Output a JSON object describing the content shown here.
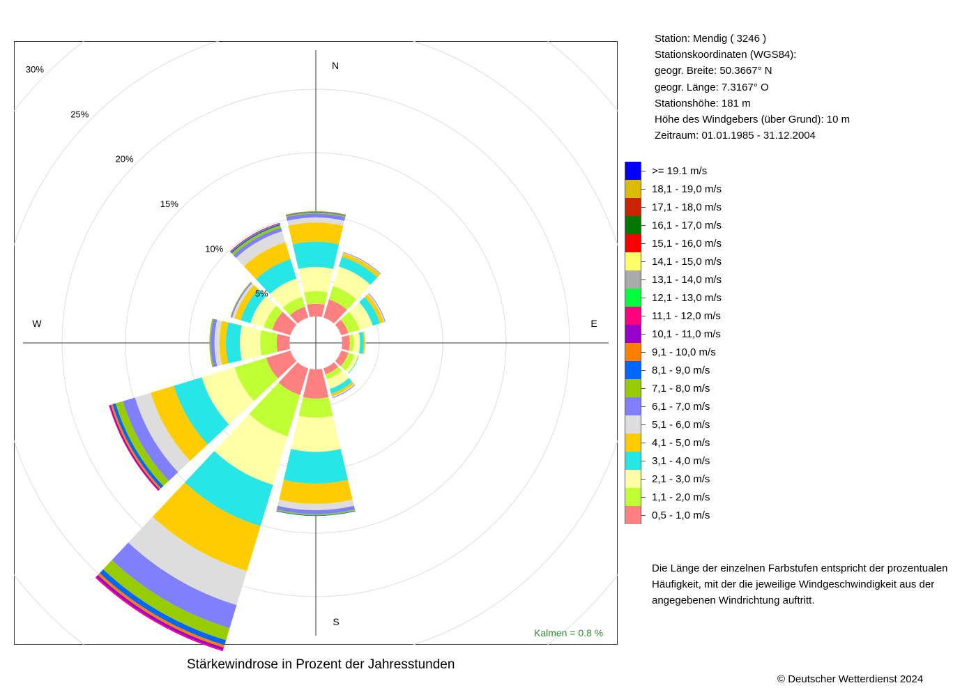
{
  "station": {
    "line1": "Station:  Mendig  ( 3246 )",
    "line2": "Stationskoordinaten (WGS84):",
    "line3": "geogr. Breite: 50.3667° N",
    "line4": "geogr. Länge:   7.3167° O",
    "line5": "Stationshöhe: 181 m",
    "line6": "Höhe des Windgebers (über Grund): 10 m",
    "line7": "Zeitraum: 01.01.1985 - 31.12.2004"
  },
  "note": "Die Länge der einzelnen Farbstufen entspricht der prozentualen Häufigkeit, mit der die jeweilige Windgeschwindigkeit aus der angegebenen Windrichtung auftritt.",
  "caption": "Stärkewindrose in Prozent der Jahresstunden",
  "copyright": "© Deutscher Wetterdienst  2024",
  "calm_label": "Kalmen  =  0.8 %",
  "colors": {
    "calm_text": "#2e8b2e",
    "grid": "#dddddd",
    "axis": "#333333"
  },
  "chart_data": {
    "type": "polar-stacked-bar",
    "directions": [
      "N",
      "NNE",
      "ENE",
      "E",
      "ESE",
      "SSE",
      "S",
      "SSW",
      "WSW",
      "W",
      "WNW",
      "NNW"
    ],
    "direction_degrees": [
      0,
      30,
      60,
      90,
      120,
      150,
      180,
      210,
      240,
      270,
      300,
      330
    ],
    "compass_labels": [
      "N",
      "E",
      "S",
      "W"
    ],
    "radial_ticks": [
      5,
      10,
      15,
      20,
      25,
      30
    ],
    "radial_tick_labels": [
      "5%",
      "10%",
      "15%",
      "20%",
      "25%",
      "30%"
    ],
    "rmax": 30,
    "calm_percent": 0.8,
    "classes": [
      {
        "label": "0,5 - 1,0 m/s",
        "color": "#ff8080"
      },
      {
        "label": "1,1 - 2,0 m/s",
        "color": "#bfff33"
      },
      {
        "label": "2,1 - 3,0 m/s",
        "color": "#ffffa6"
      },
      {
        "label": "3,1 - 4,0 m/s",
        "color": "#26e6e6"
      },
      {
        "label": "4,1 - 5,0 m/s",
        "color": "#ffcc00"
      },
      {
        "label": "5,1 - 6,0 m/s",
        "color": "#dddddd"
      },
      {
        "label": "6,1 - 7,0 m/s",
        "color": "#8080ff"
      },
      {
        "label": "7,1 - 8,0 m/s",
        "color": "#99cc00"
      },
      {
        "label": "8,1 - 9,0 m/s",
        "color": "#0066ff"
      },
      {
        "label": "9,1 - 10,0 m/s",
        "color": "#ff8000"
      },
      {
        "label": "10,1 - 11,0 m/s",
        "color": "#9900cc"
      },
      {
        "label": "11,1 - 12,0 m/s",
        "color": "#ff0080"
      },
      {
        "label": "12,1 - 13,0 m/s",
        "color": "#00ff40"
      },
      {
        "label": "13,1 - 14,0 m/s",
        "color": "#aaaaaa"
      },
      {
        "label": "14,1 - 15,0 m/s",
        "color": "#ffff66"
      },
      {
        "label": "15,1 - 16,0 m/s",
        "color": "#ff0000"
      },
      {
        "label": "16,1 - 17,0 m/s",
        "color": "#007700"
      },
      {
        "label": "17,1 - 18,0 m/s",
        "color": "#cc2200"
      },
      {
        "label": "18,1 - 19,0 m/s",
        "color": "#ddbb00"
      },
      {
        "label": ">= 19.1 m/s",
        "color": "#0000ff"
      }
    ],
    "values": [
      [
        1.0,
        1.0,
        1.9,
        2.0,
        1.5,
        0.4,
        0.3,
        0.1,
        0.05,
        0.05,
        0,
        0,
        0,
        0,
        0,
        0,
        0,
        0,
        0,
        0
      ],
      [
        1.5,
        1.1,
        1.6,
        0.8,
        0.3,
        0.05,
        0.05,
        0,
        0,
        0,
        0,
        0,
        0,
        0,
        0,
        0,
        0,
        0,
        0,
        0
      ],
      [
        0.6,
        0.9,
        1.1,
        0.6,
        0.3,
        0.1,
        0.05,
        0,
        0,
        0,
        0,
        0,
        0,
        0,
        0,
        0,
        0,
        0,
        0,
        0
      ],
      [
        0.6,
        0.3,
        0.5,
        0.3,
        0.1,
        0.05,
        0,
        0,
        0,
        0,
        0,
        0,
        0,
        0,
        0,
        0,
        0,
        0,
        0,
        0
      ],
      [
        0.6,
        0.5,
        0.3,
        0.05,
        0,
        0,
        0,
        0,
        0,
        0,
        0,
        0,
        0,
        0,
        0,
        0,
        0,
        0,
        0,
        0
      ],
      [
        0.5,
        0.4,
        0.8,
        0.4,
        0.2,
        0.1,
        0.05,
        0,
        0,
        0,
        0,
        0,
        0,
        0,
        0,
        0,
        0,
        0,
        0,
        0
      ],
      [
        2.3,
        1.5,
        2.7,
        2.5,
        1.6,
        0.5,
        0.3,
        0.1,
        0.05,
        0,
        0,
        0,
        0,
        0,
        0,
        0,
        0,
        0,
        0,
        0
      ],
      [
        2.2,
        3.4,
        4.0,
        3.4,
        3.7,
        2.8,
        1.9,
        1.0,
        0.4,
        0.2,
        0.2,
        0.1,
        0,
        0,
        0,
        0,
        0,
        0,
        0,
        0
      ],
      [
        2.0,
        2.6,
        2.7,
        2.3,
        1.9,
        1.3,
        1.0,
        0.6,
        0.25,
        0.15,
        0.1,
        0.05,
        0,
        0,
        0,
        0,
        0,
        0,
        0,
        0
      ],
      [
        1.0,
        1.3,
        1.6,
        1.1,
        0.5,
        0.4,
        0.3,
        0.1,
        0,
        0,
        0,
        0,
        0,
        0,
        0,
        0,
        0,
        0,
        0,
        0
      ],
      [
        1.5,
        0.7,
        1.1,
        0.8,
        0.5,
        0.2,
        0.1,
        0.05,
        0,
        0,
        0,
        0,
        0,
        0,
        0,
        0,
        0,
        0,
        0,
        0
      ],
      [
        0.9,
        0.8,
        1.5,
        1.6,
        1.4,
        0.9,
        0.3,
        0.2,
        0.1,
        0.05,
        0.05,
        0,
        0,
        0,
        0,
        0,
        0,
        0,
        0,
        0
      ]
    ]
  }
}
